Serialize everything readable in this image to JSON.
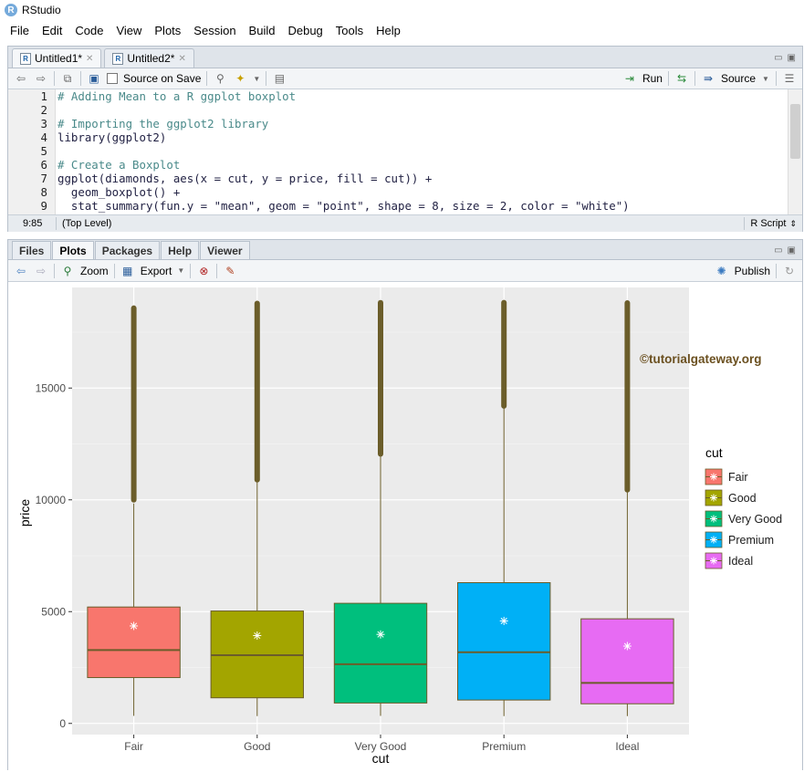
{
  "app": {
    "title": "RStudio"
  },
  "menu": [
    "File",
    "Edit",
    "Code",
    "View",
    "Plots",
    "Session",
    "Build",
    "Debug",
    "Tools",
    "Help"
  ],
  "source_tabs": [
    {
      "label": "Untitled1*",
      "active": true
    },
    {
      "label": "Untitled2*",
      "active": false
    }
  ],
  "source_toolbar": {
    "save_on_source": "Source on Save",
    "run": "Run",
    "source": "Source"
  },
  "editor": {
    "line_numbers": [
      "1",
      "2",
      "3",
      "4",
      "5",
      "6",
      "7",
      "8",
      "9"
    ],
    "lines": [
      "# Adding Mean to a R ggplot boxplot",
      "",
      "# Importing the ggplot2 library",
      "library(ggplot2)",
      "",
      "# Create a Boxplot",
      "ggplot(diamonds, aes(x = cut, y = price, fill = cut)) +",
      "  geom_boxplot() +",
      "  stat_summary(fun.y = \"mean\", geom = \"point\", shape = 8, size = 2, color = \"white\")"
    ]
  },
  "status": {
    "position": "9:85",
    "scope": "(Top Level)",
    "filetype": "R Script"
  },
  "plot_tabs": [
    {
      "label": "Files",
      "active": false
    },
    {
      "label": "Plots",
      "active": true
    },
    {
      "label": "Packages",
      "active": false
    },
    {
      "label": "Help",
      "active": false
    },
    {
      "label": "Viewer",
      "active": false
    }
  ],
  "plot_toolbar": {
    "zoom": "Zoom",
    "export": "Export",
    "publish": "Publish"
  },
  "chart_data": {
    "type": "boxplot",
    "title": "",
    "xlabel": "cut",
    "ylabel": "price",
    "ylim": [
      -500,
      19500
    ],
    "yticks": [
      0,
      5000,
      10000,
      15000
    ],
    "legend_title": "cut",
    "legend_position": "right",
    "watermark": "©tutorialgateway.org",
    "categories": [
      "Fair",
      "Good",
      "Very Good",
      "Premium",
      "Ideal"
    ],
    "colors": [
      "#F8766D",
      "#A3A500",
      "#00BF7D",
      "#00B0F6",
      "#E76BF3"
    ],
    "series": [
      {
        "name": "Fair",
        "min": 337,
        "q1": 2050,
        "median": 3282,
        "q3": 5206,
        "max": 9840,
        "mean": 4359,
        "outlier_start": 10000,
        "outlier_max": 18574
      },
      {
        "name": "Good",
        "min": 327,
        "q1": 1145,
        "median": 3050,
        "q3": 5028,
        "max": 10850,
        "mean": 3929,
        "outlier_start": 10900,
        "outlier_max": 18788
      },
      {
        "name": "Very Good",
        "min": 336,
        "q1": 912,
        "median": 2648,
        "q3": 5373,
        "max": 12000,
        "mean": 3982,
        "outlier_start": 12050,
        "outlier_max": 18818
      },
      {
        "name": "Premium",
        "min": 326,
        "q1": 1046,
        "median": 3185,
        "q3": 6296,
        "max": 14150,
        "mean": 4584,
        "outlier_start": 14200,
        "outlier_max": 18823
      },
      {
        "name": "Ideal",
        "min": 326,
        "q1": 878,
        "median": 1810,
        "q3": 4678,
        "max": 10400,
        "mean": 3458,
        "outlier_start": 10450,
        "outlier_max": 18806
      }
    ]
  }
}
